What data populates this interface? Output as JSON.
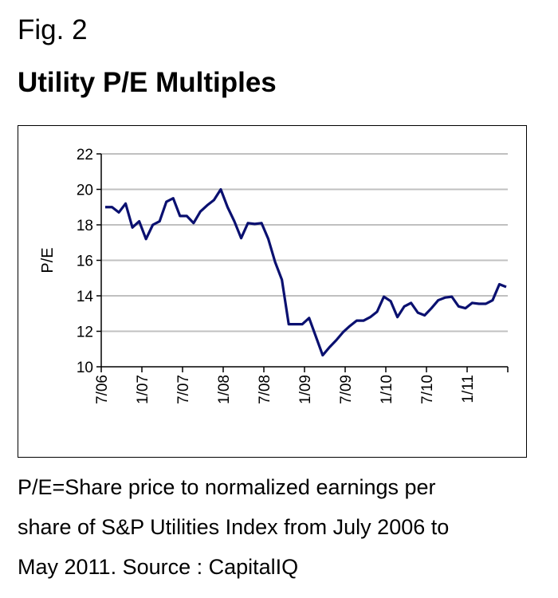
{
  "header": {
    "fig": "Fig. 2",
    "title": "Utility P/E Multiples"
  },
  "caption": {
    "lines": [
      "P/E=Share price to normalized earnings per",
      "share of S&P Utilities Index from July 2006 to",
      "May 2011. Source : CapitalIQ"
    ]
  },
  "chart_data": {
    "type": "line",
    "title": "Utility P/E Multiples",
    "xlabel": "",
    "ylabel": "P/E",
    "ylim": [
      10,
      22
    ],
    "yticks": [
      10,
      12,
      14,
      16,
      18,
      20,
      22
    ],
    "xticks": [
      "7/06",
      "1/07",
      "7/07",
      "1/08",
      "7/08",
      "1/09",
      "7/09",
      "1/10",
      "7/10",
      "1/11",
      ""
    ],
    "grid": true,
    "line_color": "#0a1070",
    "series": [
      {
        "name": "P/E",
        "values": [
          19.0,
          19.0,
          18.7,
          19.2,
          17.85,
          18.2,
          17.2,
          18.0,
          18.2,
          19.3,
          19.5,
          18.5,
          18.5,
          18.1,
          18.75,
          19.1,
          19.4,
          20.0,
          19.0,
          18.2,
          17.25,
          18.1,
          18.05,
          18.1,
          17.2,
          15.9,
          14.9,
          12.4,
          12.4,
          12.4,
          12.75,
          11.7,
          10.65,
          11.1,
          11.5,
          11.95,
          12.3,
          12.6,
          12.6,
          12.8,
          13.1,
          13.95,
          13.7,
          12.8,
          13.4,
          13.6,
          13.05,
          12.9,
          13.3,
          13.75,
          13.9,
          13.95,
          13.4,
          13.3,
          13.6,
          13.55,
          13.55,
          13.75,
          14.65,
          14.5
        ]
      }
    ]
  }
}
